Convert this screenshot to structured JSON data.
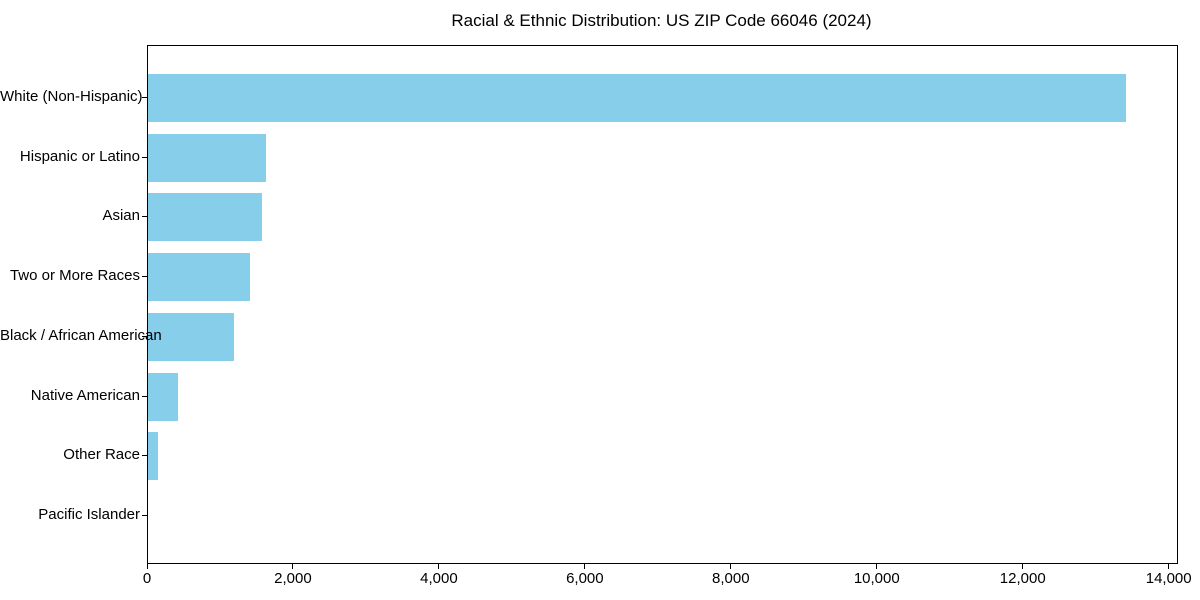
{
  "chart_data": {
    "type": "bar",
    "orientation": "horizontal",
    "title": "Racial & Ethnic Distribution: US ZIP Code 66046 (2024)",
    "categories": [
      "White (Non-Hispanic)",
      "Hispanic or Latino",
      "Asian",
      "Two or More Races",
      "Black / African American",
      "Native American",
      "Other Race",
      "Pacific Islander"
    ],
    "values": [
      13400,
      1620,
      1560,
      1400,
      1180,
      410,
      140,
      0
    ],
    "xlabel": "",
    "ylabel": "",
    "xlim": [
      0,
      14100
    ],
    "x_ticks": [
      0,
      2000,
      4000,
      6000,
      8000,
      10000,
      12000,
      14000
    ],
    "x_tick_labels": [
      "0",
      "2,000",
      "4,000",
      "6,000",
      "8,000",
      "10,000",
      "12,000",
      "14,000"
    ],
    "bar_color": "#87CEEB",
    "axis_color": "#000000",
    "text_color": "#000000",
    "background_color": "#ffffff",
    "grid": false,
    "legend": null
  }
}
